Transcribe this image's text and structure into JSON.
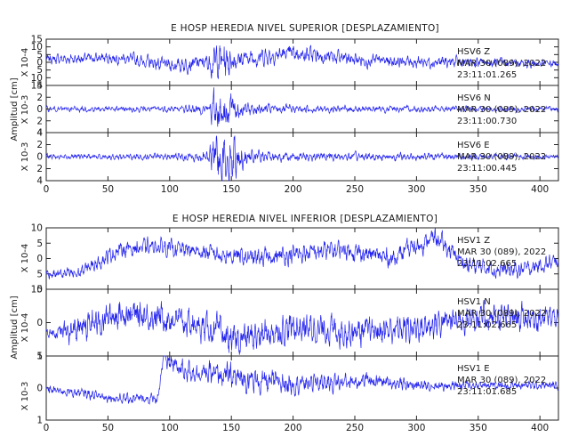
{
  "chart_data": [
    {
      "type": "line",
      "title": "E HOSP HEREDIA NIVEL SUPERIOR [DESPLAZAMIENTO]",
      "ylabel": "Amplitud [cm]",
      "x_ticks": [
        "0",
        "50",
        "100",
        "150",
        "200",
        "250",
        "300",
        "350",
        "400"
      ],
      "xlim": [
        0,
        415
      ],
      "line_color": "#2222ee",
      "panels": [
        {
          "station": "HSV6",
          "component": "Z",
          "date": "MAR 30 (089), 2022",
          "time": "23:11:01.265",
          "scale": "X 10-4",
          "ylim": [
            -15,
            15
          ],
          "y_ticks": [
            "15",
            "10",
            "5",
            "0",
            "5",
            "10",
            "15"
          ],
          "envelope": [
            [
              0,
              3
            ],
            [
              60,
              3.5
            ],
            [
              90,
              4
            ],
            [
              130,
              5
            ],
            [
              138,
              12
            ],
            [
              145,
              12
            ],
            [
              155,
              6
            ],
            [
              200,
              5
            ],
            [
              260,
              4
            ],
            [
              330,
              3.5
            ],
            [
              415,
              2.5
            ]
          ],
          "drift": [
            [
              0,
              2
            ],
            [
              60,
              3
            ],
            [
              100,
              -2
            ],
            [
              130,
              0
            ],
            [
              200,
              6
            ],
            [
              260,
              1
            ],
            [
              330,
              0
            ],
            [
              415,
              -1
            ]
          ]
        },
        {
          "station": "HSV6",
          "component": "N",
          "date": "MAR 30 (089), 2022",
          "time": "23:11:00.730",
          "scale": "X 10-3",
          "ylim": [
            -4,
            4
          ],
          "y_ticks": [
            "4",
            "2",
            "0",
            "2",
            "4"
          ],
          "envelope": [
            [
              0,
              0.4
            ],
            [
              100,
              0.5
            ],
            [
              130,
              0.8
            ],
            [
              138,
              3.8
            ],
            [
              148,
              3.5
            ],
            [
              160,
              1
            ],
            [
              200,
              0.6
            ],
            [
              415,
              0.4
            ]
          ],
          "drift": [
            [
              0,
              0
            ],
            [
              415,
              0
            ]
          ]
        },
        {
          "station": "HSV6",
          "component": "E",
          "date": "MAR 30 (089), 2022",
          "time": "23:11:00.445",
          "scale": "X 10-3",
          "ylim": [
            -4,
            4
          ],
          "y_ticks": [
            "4",
            "2",
            "0",
            "2",
            "4"
          ],
          "envelope": [
            [
              0,
              0.4
            ],
            [
              100,
              0.5
            ],
            [
              130,
              0.9
            ],
            [
              138,
              4
            ],
            [
              150,
              3.8
            ],
            [
              162,
              1.2
            ],
            [
              200,
              0.7
            ],
            [
              415,
              0.4
            ]
          ],
          "drift": [
            [
              0,
              0
            ],
            [
              415,
              0
            ]
          ]
        }
      ]
    },
    {
      "type": "line",
      "title": "E HOSP HEREDIA NIVEL INFERIOR [DESPLAZAMIENTO]",
      "ylabel": "Amplitud [cm]",
      "x_ticks": [
        "0",
        "50",
        "100",
        "150",
        "200",
        "250",
        "300",
        "350",
        "400"
      ],
      "xlim": [
        0,
        415
      ],
      "line_color": "#2222ee",
      "panels": [
        {
          "station": "HSV1",
          "component": "Z",
          "date": "MAR 30 (089), 2022",
          "time": "23:11:02.665",
          "scale": "X 10-4",
          "ylim": [
            -10,
            10
          ],
          "y_ticks": [
            "10",
            "5",
            "0",
            "5",
            "10"
          ],
          "envelope": [
            [
              0,
              1.5
            ],
            [
              60,
              2.5
            ],
            [
              150,
              3
            ],
            [
              300,
              3
            ],
            [
              415,
              2.5
            ]
          ],
          "drift": [
            [
              0,
              -5
            ],
            [
              25,
              -5
            ],
            [
              60,
              3
            ],
            [
              90,
              4
            ],
            [
              130,
              2
            ],
            [
              170,
              0
            ],
            [
              240,
              3
            ],
            [
              280,
              0
            ],
            [
              315,
              7
            ],
            [
              340,
              -2
            ],
            [
              380,
              -4
            ],
            [
              415,
              -1
            ]
          ]
        },
        {
          "station": "HSV1",
          "component": "N",
          "date": "MAR 30 (089), 2022",
          "time": "23:11:02.665",
          "scale": "X 10-4",
          "ylim": [
            -7,
            7
          ],
          "y_ticks": [
            "5",
            "0",
            "5"
          ],
          "envelope": [
            [
              0,
              1
            ],
            [
              25,
              3
            ],
            [
              150,
              3
            ],
            [
              300,
              3
            ],
            [
              415,
              2.5
            ]
          ],
          "drift": [
            [
              0,
              -2
            ],
            [
              20,
              -2
            ],
            [
              60,
              2
            ],
            [
              100,
              1
            ],
            [
              140,
              -2
            ],
            [
              150,
              -4
            ],
            [
              200,
              -1
            ],
            [
              260,
              -2
            ],
            [
              300,
              -1
            ],
            [
              340,
              1
            ],
            [
              415,
              1
            ]
          ]
        },
        {
          "station": "HSV1",
          "component": "E",
          "date": "MAR 30 (089), 2022",
          "time": "23:11:01.685",
          "scale": "X 10-3",
          "ylim": [
            -1.2,
            1.2
          ],
          "y_ticks": [
            "1",
            "0",
            "1"
          ],
          "envelope": [
            [
              0,
              0.15
            ],
            [
              90,
              0.2
            ],
            [
              96,
              0.4
            ],
            [
              140,
              0.4
            ],
            [
              148,
              0.5
            ],
            [
              300,
              0.2
            ],
            [
              415,
              0.15
            ]
          ],
          "drift": [
            [
              0,
              -0.05
            ],
            [
              30,
              -0.2
            ],
            [
              60,
              -0.4
            ],
            [
              90,
              -0.4
            ],
            [
              95,
              1.1
            ],
            [
              110,
              0.7
            ],
            [
              180,
              0.2
            ],
            [
              230,
              0.2
            ],
            [
              260,
              0.3
            ],
            [
              300,
              0.1
            ],
            [
              415,
              0.1
            ]
          ]
        }
      ]
    }
  ]
}
